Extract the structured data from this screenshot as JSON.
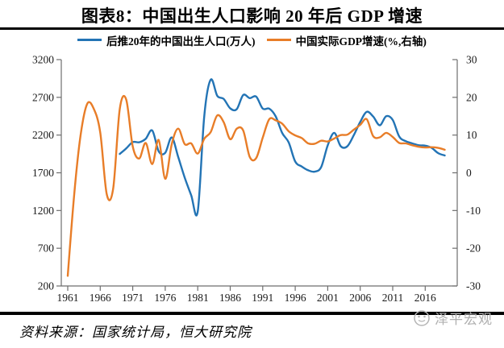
{
  "title": "图表8：中国出生人口影响 20 年后 GDP 增速",
  "legend": {
    "series1": "后推20年的中国出生人口(万人)",
    "series2": "中国实际GDP增速(%,右轴)"
  },
  "source": "资料来源：国家统计局，恒大研究院",
  "watermark": "泽平宏观",
  "colors": {
    "birth_line": "#2374B5",
    "gdp_line": "#E87D28",
    "axis": "#6e6e6e",
    "tick_label": "#1a1a1a",
    "rule": "#000000",
    "watermark": "#b0b0b0"
  },
  "chart_data": {
    "type": "line",
    "title": "图表8：中国出生人口影响 20 年后 GDP 增速",
    "x_ticks": [
      "1961",
      "1966",
      "1971",
      "1976",
      "1981",
      "1986",
      "1991",
      "1996",
      "2001",
      "2006",
      "2011",
      "2016"
    ],
    "x_range": [
      1961,
      2021
    ],
    "grid": false,
    "legend_position": "top-center",
    "left_axis": {
      "label": "后推20年的中国出生人口(万人)",
      "ticks": [
        3200,
        2700,
        2200,
        1700,
        1200,
        700,
        200
      ],
      "range": [
        200,
        3200
      ]
    },
    "right_axis": {
      "label": "中国实际GDP增速(%,右轴)",
      "ticks": [
        30,
        20,
        10,
        0,
        -10,
        -20,
        -30
      ],
      "range": [
        -30,
        30
      ]
    },
    "series": [
      {
        "name": "后推20年的中国出生人口(万人)",
        "axis": "left",
        "color": "#2374B5",
        "points": [
          [
            1969,
            1950
          ],
          [
            1970,
            2023
          ],
          [
            1971,
            2107
          ],
          [
            1972,
            2105
          ],
          [
            1973,
            2151
          ],
          [
            1974,
            2260
          ],
          [
            1975,
            1984
          ],
          [
            1976,
            1965
          ],
          [
            1977,
            2169
          ],
          [
            1978,
            1909
          ],
          [
            1979,
            1635
          ],
          [
            1980,
            1402
          ],
          [
            1981,
            1187
          ],
          [
            1982,
            2451
          ],
          [
            1983,
            2934
          ],
          [
            1984,
            2721
          ],
          [
            1985,
            2679
          ],
          [
            1986,
            2554
          ],
          [
            1987,
            2543
          ],
          [
            1988,
            2731
          ],
          [
            1989,
            2690
          ],
          [
            1990,
            2710
          ],
          [
            1991,
            2551
          ],
          [
            1992,
            2550
          ],
          [
            1993,
            2447
          ],
          [
            1994,
            2226
          ],
          [
            1995,
            2102
          ],
          [
            1996,
            1849
          ],
          [
            1997,
            1783
          ],
          [
            1998,
            1733
          ],
          [
            1999,
            1715
          ],
          [
            2000,
            1776
          ],
          [
            2001,
            2064
          ],
          [
            2002,
            2230
          ],
          [
            2003,
            2052
          ],
          [
            2004,
            2050
          ],
          [
            2005,
            2196
          ],
          [
            2006,
            2374
          ],
          [
            2007,
            2508
          ],
          [
            2008,
            2445
          ],
          [
            2009,
            2330
          ],
          [
            2010,
            2450
          ],
          [
            2011,
            2400
          ],
          [
            2012,
            2180
          ],
          [
            2013,
            2120
          ],
          [
            2014,
            2090
          ],
          [
            2015,
            2065
          ],
          [
            2016,
            2060
          ],
          [
            2017,
            2030
          ],
          [
            2018,
            1960
          ],
          [
            2019,
            1930
          ]
        ]
      },
      {
        "name": "中国实际GDP增速(%,右轴)",
        "axis": "right",
        "color": "#E87D28",
        "points": [
          [
            1961,
            -27.3
          ],
          [
            1962,
            -5.6
          ],
          [
            1963,
            10.2
          ],
          [
            1964,
            18.3
          ],
          [
            1965,
            17.0
          ],
          [
            1966,
            10.7
          ],
          [
            1967,
            -5.7
          ],
          [
            1968,
            -4.1
          ],
          [
            1969,
            16.9
          ],
          [
            1970,
            19.4
          ],
          [
            1971,
            7.0
          ],
          [
            1972,
            3.8
          ],
          [
            1973,
            7.9
          ],
          [
            1974,
            2.3
          ],
          [
            1975,
            8.7
          ],
          [
            1976,
            -1.6
          ],
          [
            1977,
            7.6
          ],
          [
            1978,
            11.7
          ],
          [
            1979,
            7.6
          ],
          [
            1980,
            7.8
          ],
          [
            1981,
            5.1
          ],
          [
            1982,
            9.0
          ],
          [
            1983,
            10.8
          ],
          [
            1984,
            15.2
          ],
          [
            1985,
            13.4
          ],
          [
            1986,
            8.9
          ],
          [
            1987,
            11.7
          ],
          [
            1988,
            11.2
          ],
          [
            1989,
            4.2
          ],
          [
            1990,
            3.9
          ],
          [
            1991,
            9.3
          ],
          [
            1992,
            14.2
          ],
          [
            1993,
            13.9
          ],
          [
            1994,
            13.0
          ],
          [
            1995,
            11.0
          ],
          [
            1996,
            9.9
          ],
          [
            1997,
            9.2
          ],
          [
            1998,
            7.8
          ],
          [
            1999,
            7.7
          ],
          [
            2000,
            8.5
          ],
          [
            2001,
            8.3
          ],
          [
            2002,
            9.1
          ],
          [
            2003,
            10.0
          ],
          [
            2004,
            10.1
          ],
          [
            2005,
            11.4
          ],
          [
            2006,
            12.7
          ],
          [
            2007,
            14.2
          ],
          [
            2008,
            9.7
          ],
          [
            2009,
            9.4
          ],
          [
            2010,
            10.6
          ],
          [
            2011,
            9.5
          ],
          [
            2012,
            7.9
          ],
          [
            2013,
            7.8
          ],
          [
            2014,
            7.3
          ],
          [
            2015,
            6.9
          ],
          [
            2016,
            6.7
          ],
          [
            2017,
            6.8
          ],
          [
            2018,
            6.6
          ],
          [
            2019,
            6.1
          ]
        ]
      }
    ]
  }
}
